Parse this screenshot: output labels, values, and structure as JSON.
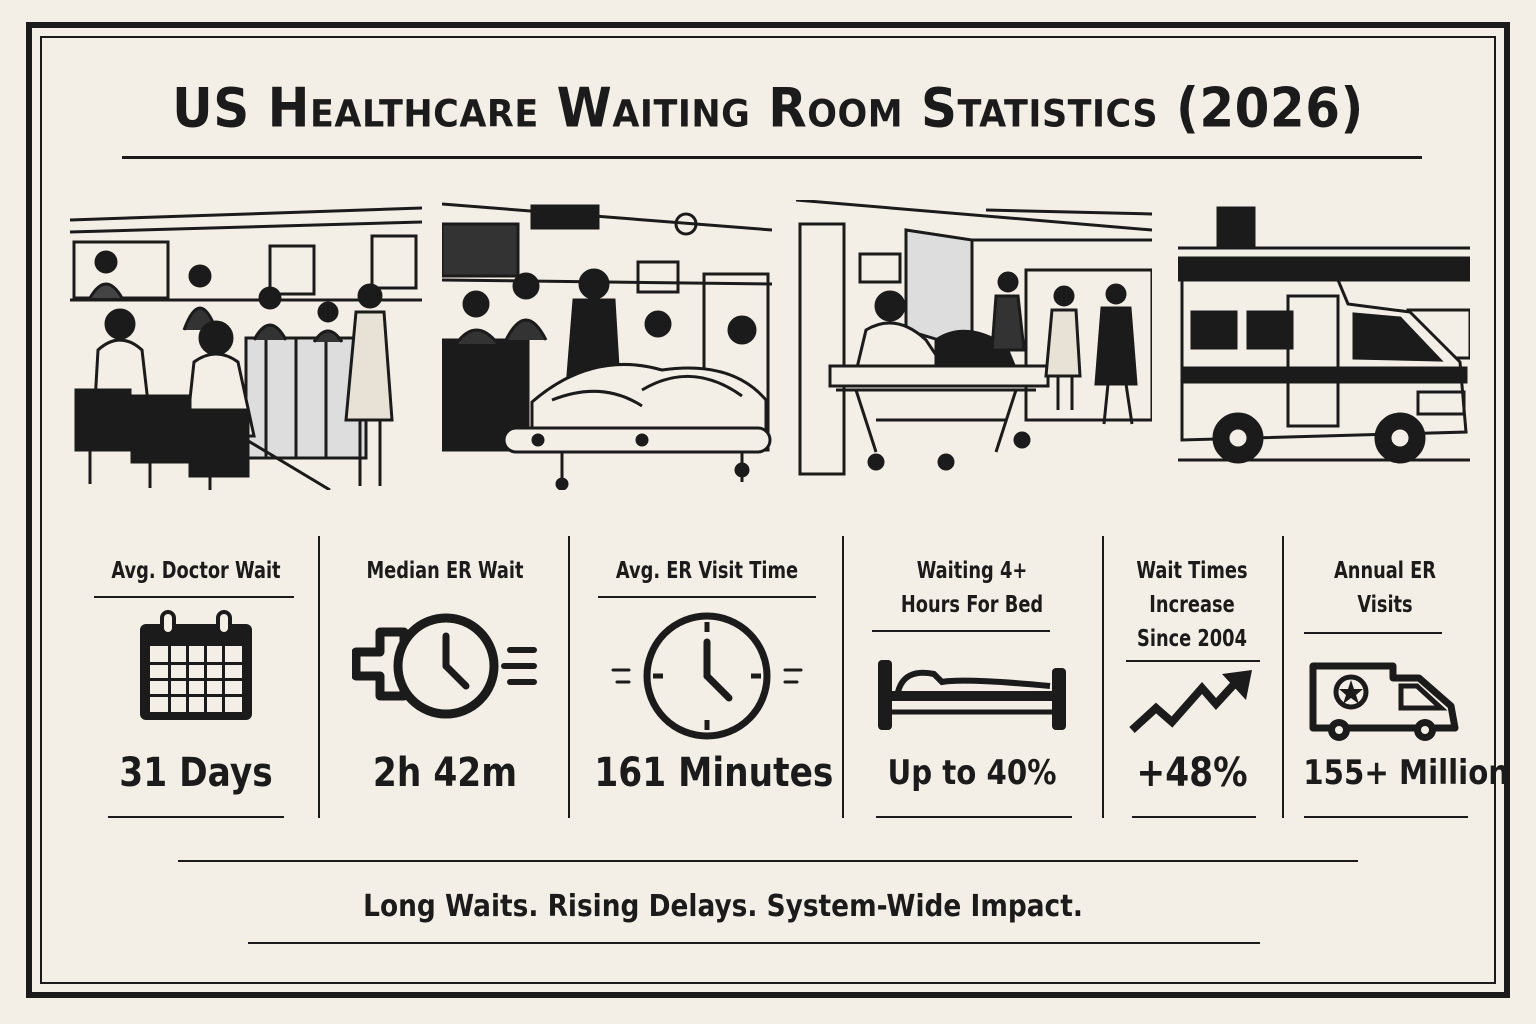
{
  "title": "US Healthcare Waiting Room Statistics (2026)",
  "panels": [
    {
      "icon": "waiting-room-illustration"
    },
    {
      "icon": "er-treatment-illustration"
    },
    {
      "icon": "hallway-stretcher-illustration"
    },
    {
      "icon": "ambulance-illustration"
    }
  ],
  "stats": [
    {
      "label": "Avg. Doctor Wait",
      "value": "31 Days",
      "icon": "calendar-icon"
    },
    {
      "label": "Median ER Wait",
      "value": "2h 42m",
      "icon": "medical-clock-icon"
    },
    {
      "label": "Avg. ER Visit Time",
      "value": "161 Minutes",
      "icon": "clock-icon"
    },
    {
      "label": "Waiting 4+ Hours For Bed",
      "value": "Up to 40%",
      "icon": "bed-icon"
    },
    {
      "label": "Wait Times Increase Since 2004",
      "value": "+48%",
      "icon": "trend-up-icon"
    },
    {
      "label": "Annual ER Visits",
      "value": "155+ Million",
      "icon": "ambulance-icon"
    }
  ],
  "tagline": "Long Waits. Rising Delays. System-Wide Impact.",
  "colors": {
    "ink": "#1b1b1b",
    "paper": "#f4efe6"
  }
}
